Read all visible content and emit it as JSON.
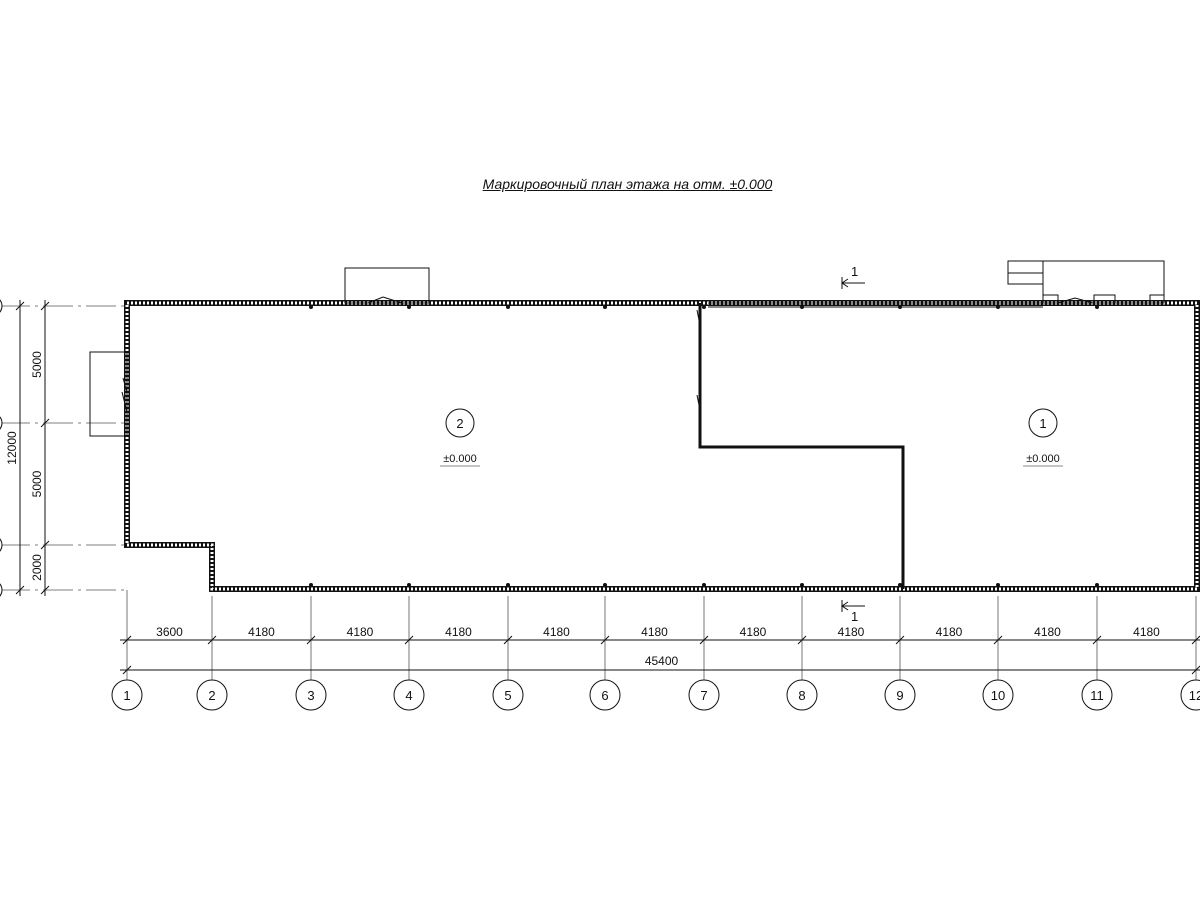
{
  "title": "Маркировочный план этажа на отм. ±0.000",
  "axes_x": [
    "1",
    "2",
    "3",
    "4",
    "5",
    "6",
    "7",
    "8",
    "9",
    "10",
    "11",
    "12"
  ],
  "dims_x": [
    "3600",
    "4180",
    "4180",
    "4180",
    "4180",
    "4180",
    "4180",
    "4180",
    "4180",
    "4180",
    "4180"
  ],
  "dim_total_x": "45400",
  "dims_y": [
    "5000",
    "5000",
    "2000"
  ],
  "dim_total_y": "12000",
  "rooms": [
    {
      "number": "2",
      "level": "±0.000"
    },
    {
      "number": "1",
      "level": "±0.000"
    }
  ],
  "section_marks": {
    "top": "1",
    "bottom": "1"
  },
  "colors": {
    "line": "#111111",
    "wall_fill": "#9a9a9a"
  }
}
